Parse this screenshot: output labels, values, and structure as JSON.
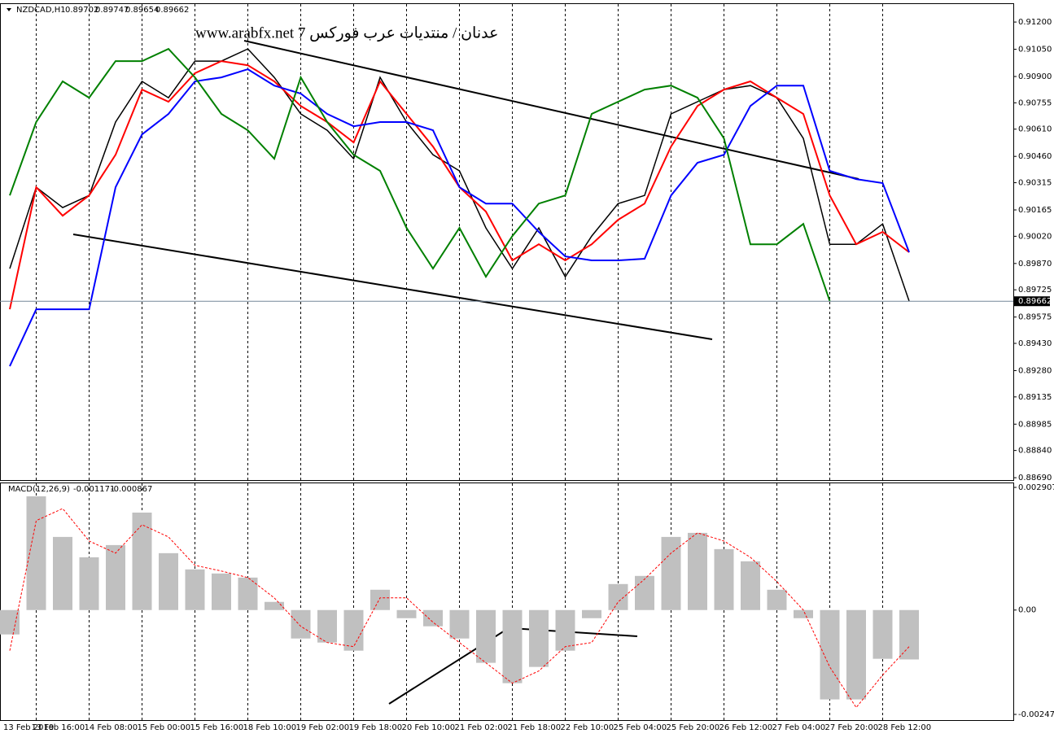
{
  "chart_data": [
    {
      "type": "line",
      "title": "NZDCAD,H1",
      "last_bar": {
        "open": 0.89702,
        "high": 0.89747,
        "low": 0.89654,
        "close": 0.89662
      },
      "watermark": "www.arabfx.net 7 عدنان / منتديات عرب فوركس",
      "last_price": 0.89662,
      "categories": [
        "13 Feb 2019",
        "13 Feb 16:00",
        null,
        "14 Feb 08:00",
        null,
        "15 Feb 00:00",
        null,
        "15 Feb 16:00",
        null,
        "18 Feb 10:00",
        null,
        "19 Feb 02:00",
        null,
        "19 Feb 18:00",
        null,
        "20 Feb 10:00",
        null,
        "21 Feb 02:00",
        null,
        "21 Feb 18:00",
        null,
        "22 Feb 10:00",
        null,
        "25 Feb 04:00",
        null,
        "25 Feb 20:00",
        null,
        "26 Feb 12:00",
        null,
        "27 Feb 04:00",
        null,
        "27 Feb 20:00",
        null,
        "28 Feb 12:00",
        null
      ],
      "series": [
        {
          "color": "#000000",
          "values": [
            0.89842,
            0.9029,
            0.90178,
            0.90245,
            0.90649,
            0.90873,
            0.90783,
            0.90985,
            0.90985,
            0.91052,
            0.90895,
            0.90694,
            0.90604,
            0.90447,
            0.90895,
            0.90649,
            0.90469,
            0.9038,
            0.90066,
            0.89842,
            0.90066,
            0.89797,
            0.90021,
            0.902,
            0.90245,
            0.90694,
            0.90761,
            0.90828,
            0.9085,
            0.90783,
            0.90559,
            0.89976,
            0.89976,
            0.90088,
            0.89663
          ]
        },
        {
          "color": "#ff0000",
          "values": [
            0.89618,
            0.9029,
            0.90133,
            0.90245,
            0.90469,
            0.90828,
            0.90761,
            0.90918,
            0.90985,
            0.90962,
            0.90873,
            0.90738,
            0.90649,
            0.90537,
            0.90873,
            0.90694,
            0.90514,
            0.9029,
            0.90156,
            0.89887,
            0.89976,
            0.89887,
            0.89976,
            0.90111,
            0.902,
            0.90514,
            0.90738,
            0.90828,
            0.90873,
            0.90783,
            0.90694,
            0.90245,
            0.89976,
            0.90044,
            0.89932
          ]
        },
        {
          "color": "#0000ff",
          "values": [
            0.89304,
            0.89618,
            0.89618,
            0.89618,
            0.9029,
            0.90581,
            0.90694,
            0.90873,
            0.90895,
            0.9094,
            0.9085,
            0.90806,
            0.90694,
            0.90626,
            0.90649,
            0.90649,
            0.90604,
            0.9029,
            0.902,
            0.902,
            0.90044,
            0.89909,
            0.89887,
            0.89887,
            0.89896,
            0.90245,
            0.90425,
            0.90469,
            0.90738,
            0.9085,
            0.9085,
            0.9038,
            0.90335,
            0.90313,
            0.89932
          ]
        },
        {
          "color": "#008000",
          "values": [
            0.90245,
            0.90649,
            0.90873,
            0.90783,
            0.90985,
            0.90985,
            0.91052,
            0.90895,
            0.90694,
            0.90604,
            0.90447,
            0.90895,
            0.90649,
            0.90469,
            0.9038,
            0.90066,
            0.89842,
            0.90066,
            0.89797,
            0.90021,
            0.902,
            0.90245,
            0.90694,
            0.90761,
            0.90828,
            0.9085,
            0.90783,
            0.90559,
            0.89976,
            0.89976,
            0.90088,
            0.89663,
            null,
            null,
            null
          ]
        }
      ],
      "ylim": [
        0.88677,
        0.91299
      ],
      "yticks": [
        {
          "value": 0.912,
          "label": "0.91200"
        },
        {
          "value": 0.9105,
          "label": "0.91050"
        },
        {
          "value": 0.909,
          "label": "0.90900"
        },
        0.90755,
        {
          "value": 0.9061,
          "label": "0.90610"
        },
        {
          "value": 0.9046,
          "label": "0.90460"
        },
        0.90315,
        0.90165,
        {
          "value": 0.9002,
          "label": "0.90020"
        },
        {
          "value": 0.8987,
          "label": "0.89870"
        },
        0.89725,
        0.89575,
        {
          "value": 0.8943,
          "label": "0.89430"
        },
        {
          "value": 0.8928,
          "label": "0.89280"
        },
        0.89135,
        0.88985,
        {
          "value": 0.8884,
          "label": "0.88840"
        },
        {
          "value": 0.8869,
          "label": "0.88690"
        }
      ]
    },
    {
      "type": "bar",
      "title": "MACD(12,26,9)",
      "series": [
        {
          "type": "bar",
          "color": "#c0c0c0",
          "values": [
            -0.000578,
            0.002695,
            0.001733,
            0.001251,
            0.00154,
            0.00231,
            0.001348,
            0.000963,
            0.000866,
            0.00077,
            0.000193,
            -0.000674,
            -0.00077,
            -0.000963,
            0.000481,
            -0.000193,
            -0.000385,
            -0.000674,
            -0.001251,
            -0.001733,
            -0.001348,
            -0.000963,
            -0.000193,
            0.000616,
            0.000809,
            0.001733,
            0.001829,
            0.001444,
            0.001155,
            0.000481,
            -0.000193,
            -0.002118,
            -0.002118,
            -0.001155,
            -0.001171
          ]
        },
        {
          "type": "line",
          "color": "#ff0000",
          "values": [
            -0.000963,
            0.002118,
            0.002406,
            0.001636,
            0.001348,
            0.002021,
            0.001733,
            0.001059,
            0.000924,
            0.00077,
            0.000289,
            -0.000385,
            -0.00077,
            -0.000866,
            0.000289,
            0.000289,
            -0.000289,
            -0.00077,
            -0.001251,
            -0.001733,
            -0.001444,
            -0.000866,
            -0.00077,
            0.000193,
            0.000732,
            0.001348,
            0.001829,
            0.001636,
            0.001251,
            0.000674,
            0,
            -0.001348,
            -0.00231,
            -0.00154,
            -0.000867
          ]
        }
      ],
      "ylim": [
        -0.002608,
        0.002984
      ],
      "yticks": [
        0.002907,
        {
          "value": 0,
          "label": "0.00"
        },
        -0.002473
      ]
    }
  ]
}
